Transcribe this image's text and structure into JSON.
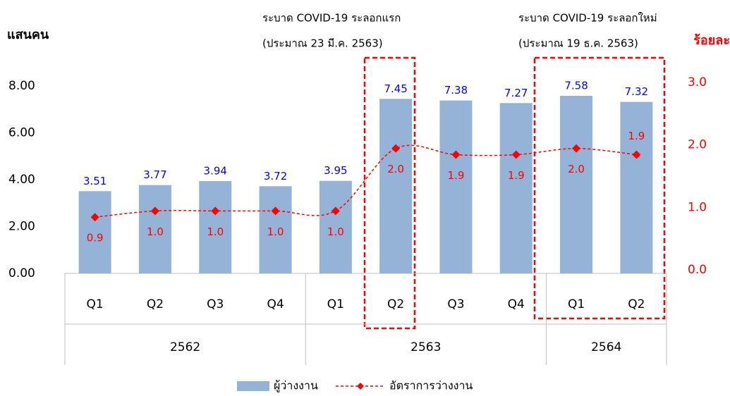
{
  "chart_data": {
    "type": "bar_line",
    "y_label": "แสนคน",
    "y2_label": "ร้อยละ",
    "annotations": [
      "ระบาด COVID-19 ระลอกแรก",
      "(ประมาณ 23 มี.ค. 2563)",
      "ระบาด COVID-19 ระลอกใหม่",
      "(ประมาณ 19 ธ.ค. 2563)"
    ],
    "categories": [
      "Q1",
      "Q2",
      "Q3",
      "Q4",
      "Q1",
      "Q2",
      "Q3",
      "Q4",
      "Q1",
      "Q2"
    ],
    "category_groups": [
      "2562",
      null,
      null,
      null,
      "2563",
      null,
      null,
      null,
      "2564",
      null
    ],
    "series": [
      {
        "name": "ผู้ว่างงาน",
        "type": "bar",
        "color": "#95b3d7",
        "values": [
          3.51,
          3.77,
          3.94,
          3.72,
          3.95,
          7.45,
          7.38,
          7.27,
          7.58,
          7.32
        ]
      },
      {
        "name": "อัตราการว่างงาน",
        "type": "line",
        "axis": "y2",
        "color": "#ff0000",
        "values": [
          0.9,
          1.0,
          1.0,
          1.0,
          1.0,
          2.0,
          1.9,
          1.9,
          2.0,
          1.9
        ],
        "value_labels": [
          "0.9",
          "1.0",
          "1.0",
          "1.0",
          "1.0",
          "2.0",
          "1.9",
          "1.9",
          "2.0",
          "1.9"
        ]
      }
    ],
    "ylim": [
      0,
      8
    ],
    "yticks": [
      {
        "value": 0,
        "label": "0.00"
      },
      {
        "value": 2,
        "label": "2.00"
      },
      {
        "value": 4,
        "label": "4.00"
      },
      {
        "value": 6,
        "label": "6.00"
      },
      {
        "value": 8,
        "label": "8.00"
      }
    ],
    "y2lim": [
      0,
      3
    ],
    "y2ticks": [
      {
        "value": 0,
        "label": "0.0"
      },
      {
        "value": 1,
        "label": "1.0"
      },
      {
        "value": 2,
        "label": "2.0"
      },
      {
        "value": 3,
        "label": "3.0"
      }
    ],
    "legend": "bottom"
  }
}
